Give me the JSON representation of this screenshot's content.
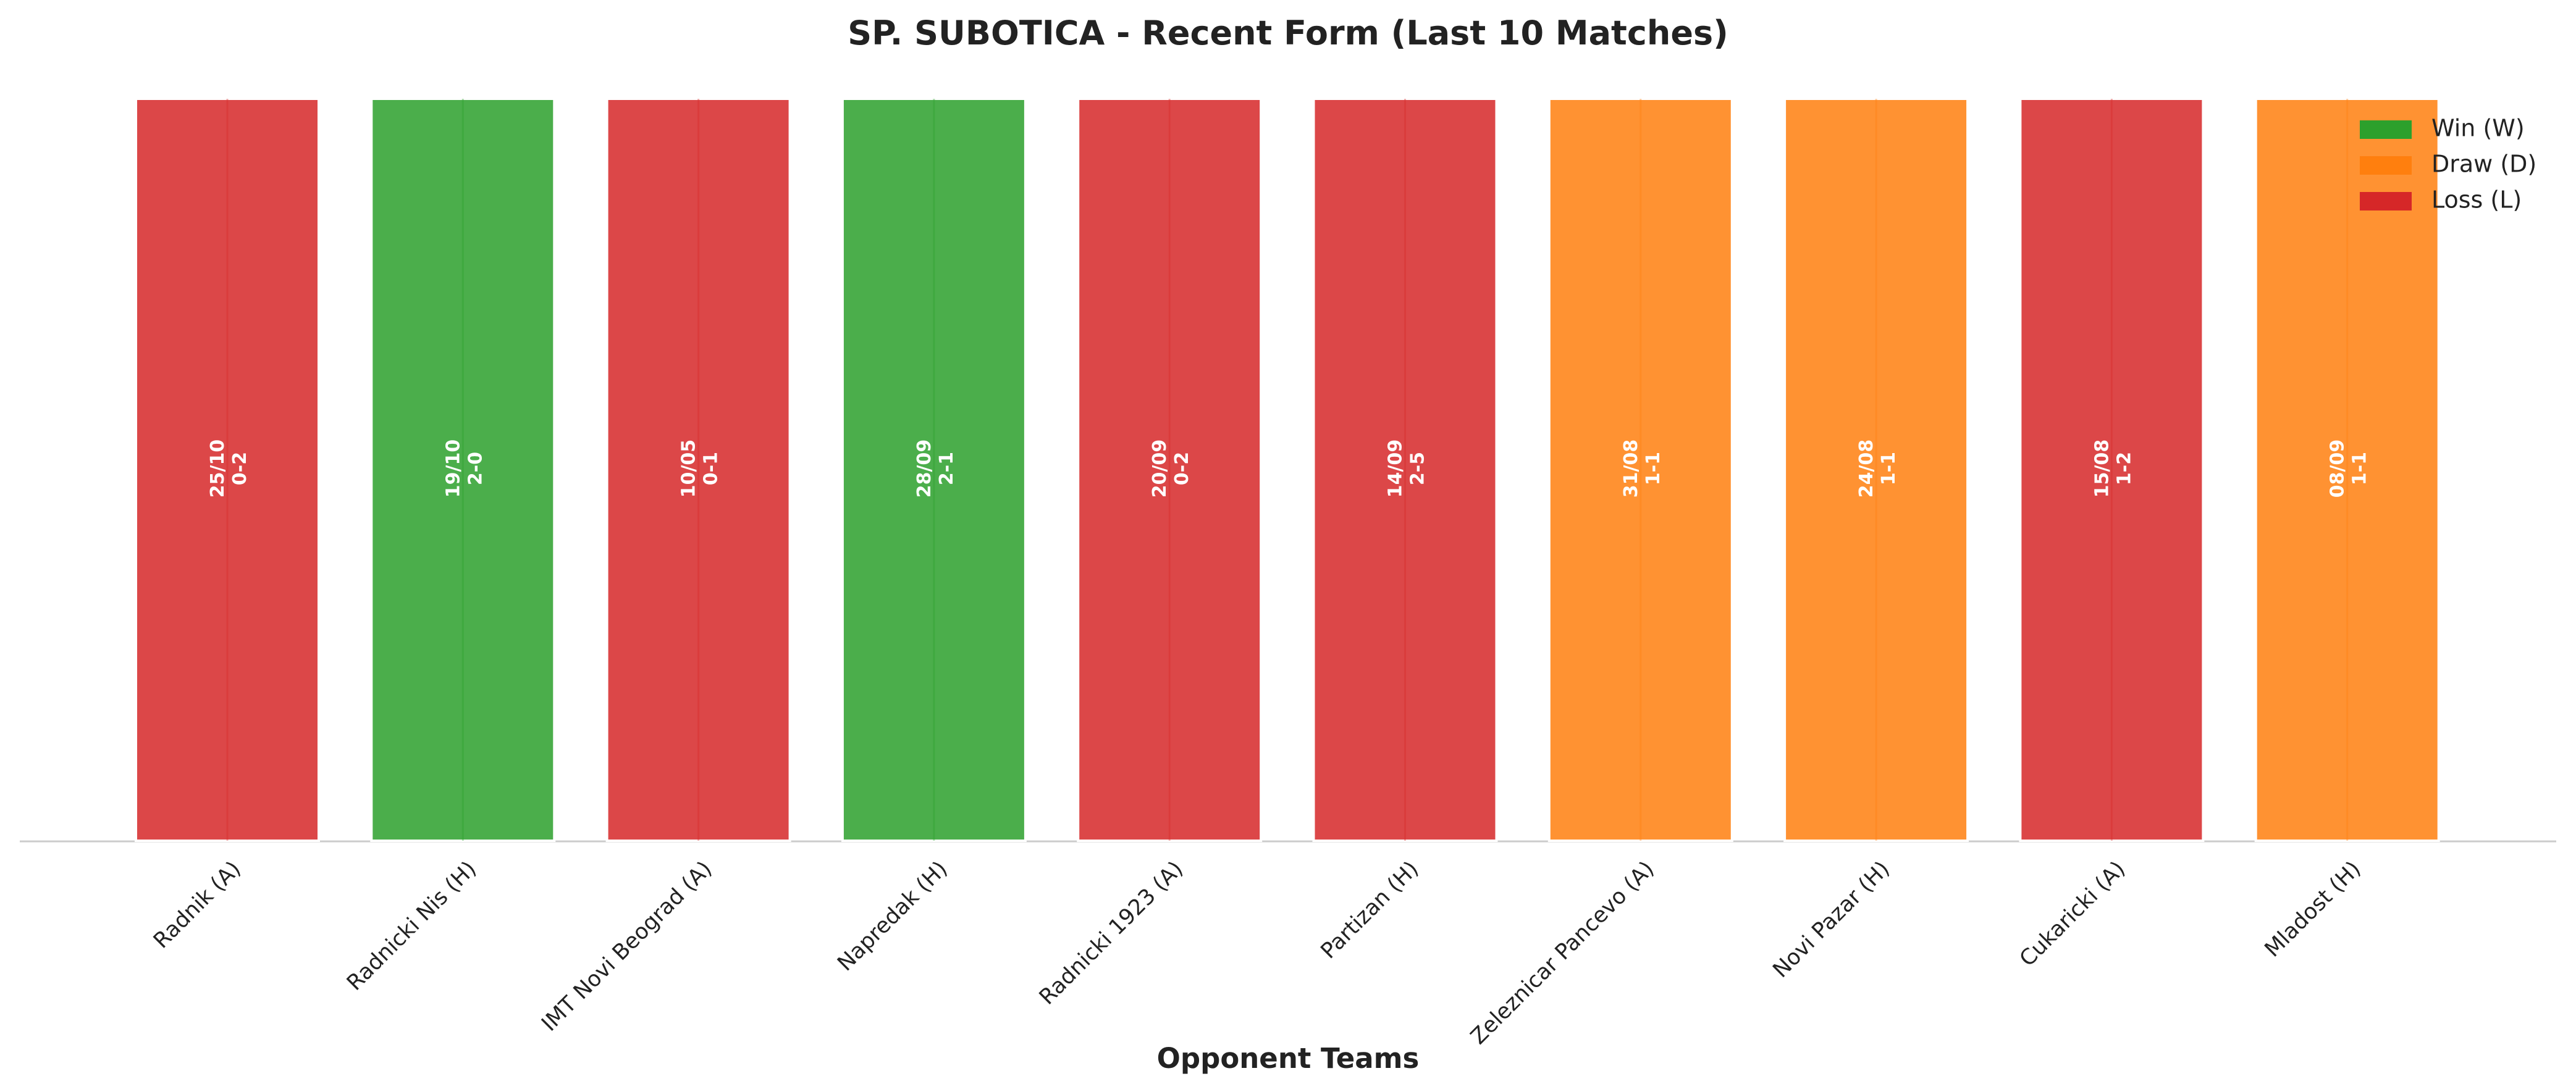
{
  "chart_data": {
    "type": "bar",
    "title": "SP. SUBOTICA - Recent Form (Last 10 Matches)",
    "x_label": "Opponent Teams",
    "categories": [
      "Radnik (A)",
      "Radnicki Nis (H)",
      "IMT Novi Beograd (A)",
      "Napredak (H)",
      "Radnicki 1923 (A)",
      "Partizan (H)",
      "Zeleznicar Pancevo (A)",
      "Novi Pazar (H)",
      "Cukaricki (A)",
      "Mladost (H)"
    ],
    "dates": [
      "25/10",
      "19/10",
      "10/05",
      "28/09",
      "20/09",
      "14/09",
      "31/08",
      "24/08",
      "15/08",
      "08/09"
    ],
    "scores": [
      "0-2",
      "2-0",
      "0-1",
      "2-1",
      "0-2",
      "2-5",
      "1-1",
      "1-1",
      "1-2",
      "1-1"
    ],
    "ylim": [
      0,
      1
    ],
    "legend_position": "upper right",
    "series": [
      {
        "name": "Win (W)",
        "color": "#2ca02c",
        "values": [
          null,
          1,
          null,
          1,
          null,
          null,
          null,
          null,
          null,
          null
        ]
      },
      {
        "name": "Draw (D)",
        "color": "#ff7f0e",
        "values": [
          null,
          null,
          null,
          null,
          null,
          null,
          1,
          1,
          null,
          1
        ]
      },
      {
        "name": "Loss (L)",
        "color": "#d62728",
        "values": [
          1,
          null,
          1,
          null,
          1,
          1,
          null,
          null,
          1,
          null
        ]
      }
    ]
  }
}
